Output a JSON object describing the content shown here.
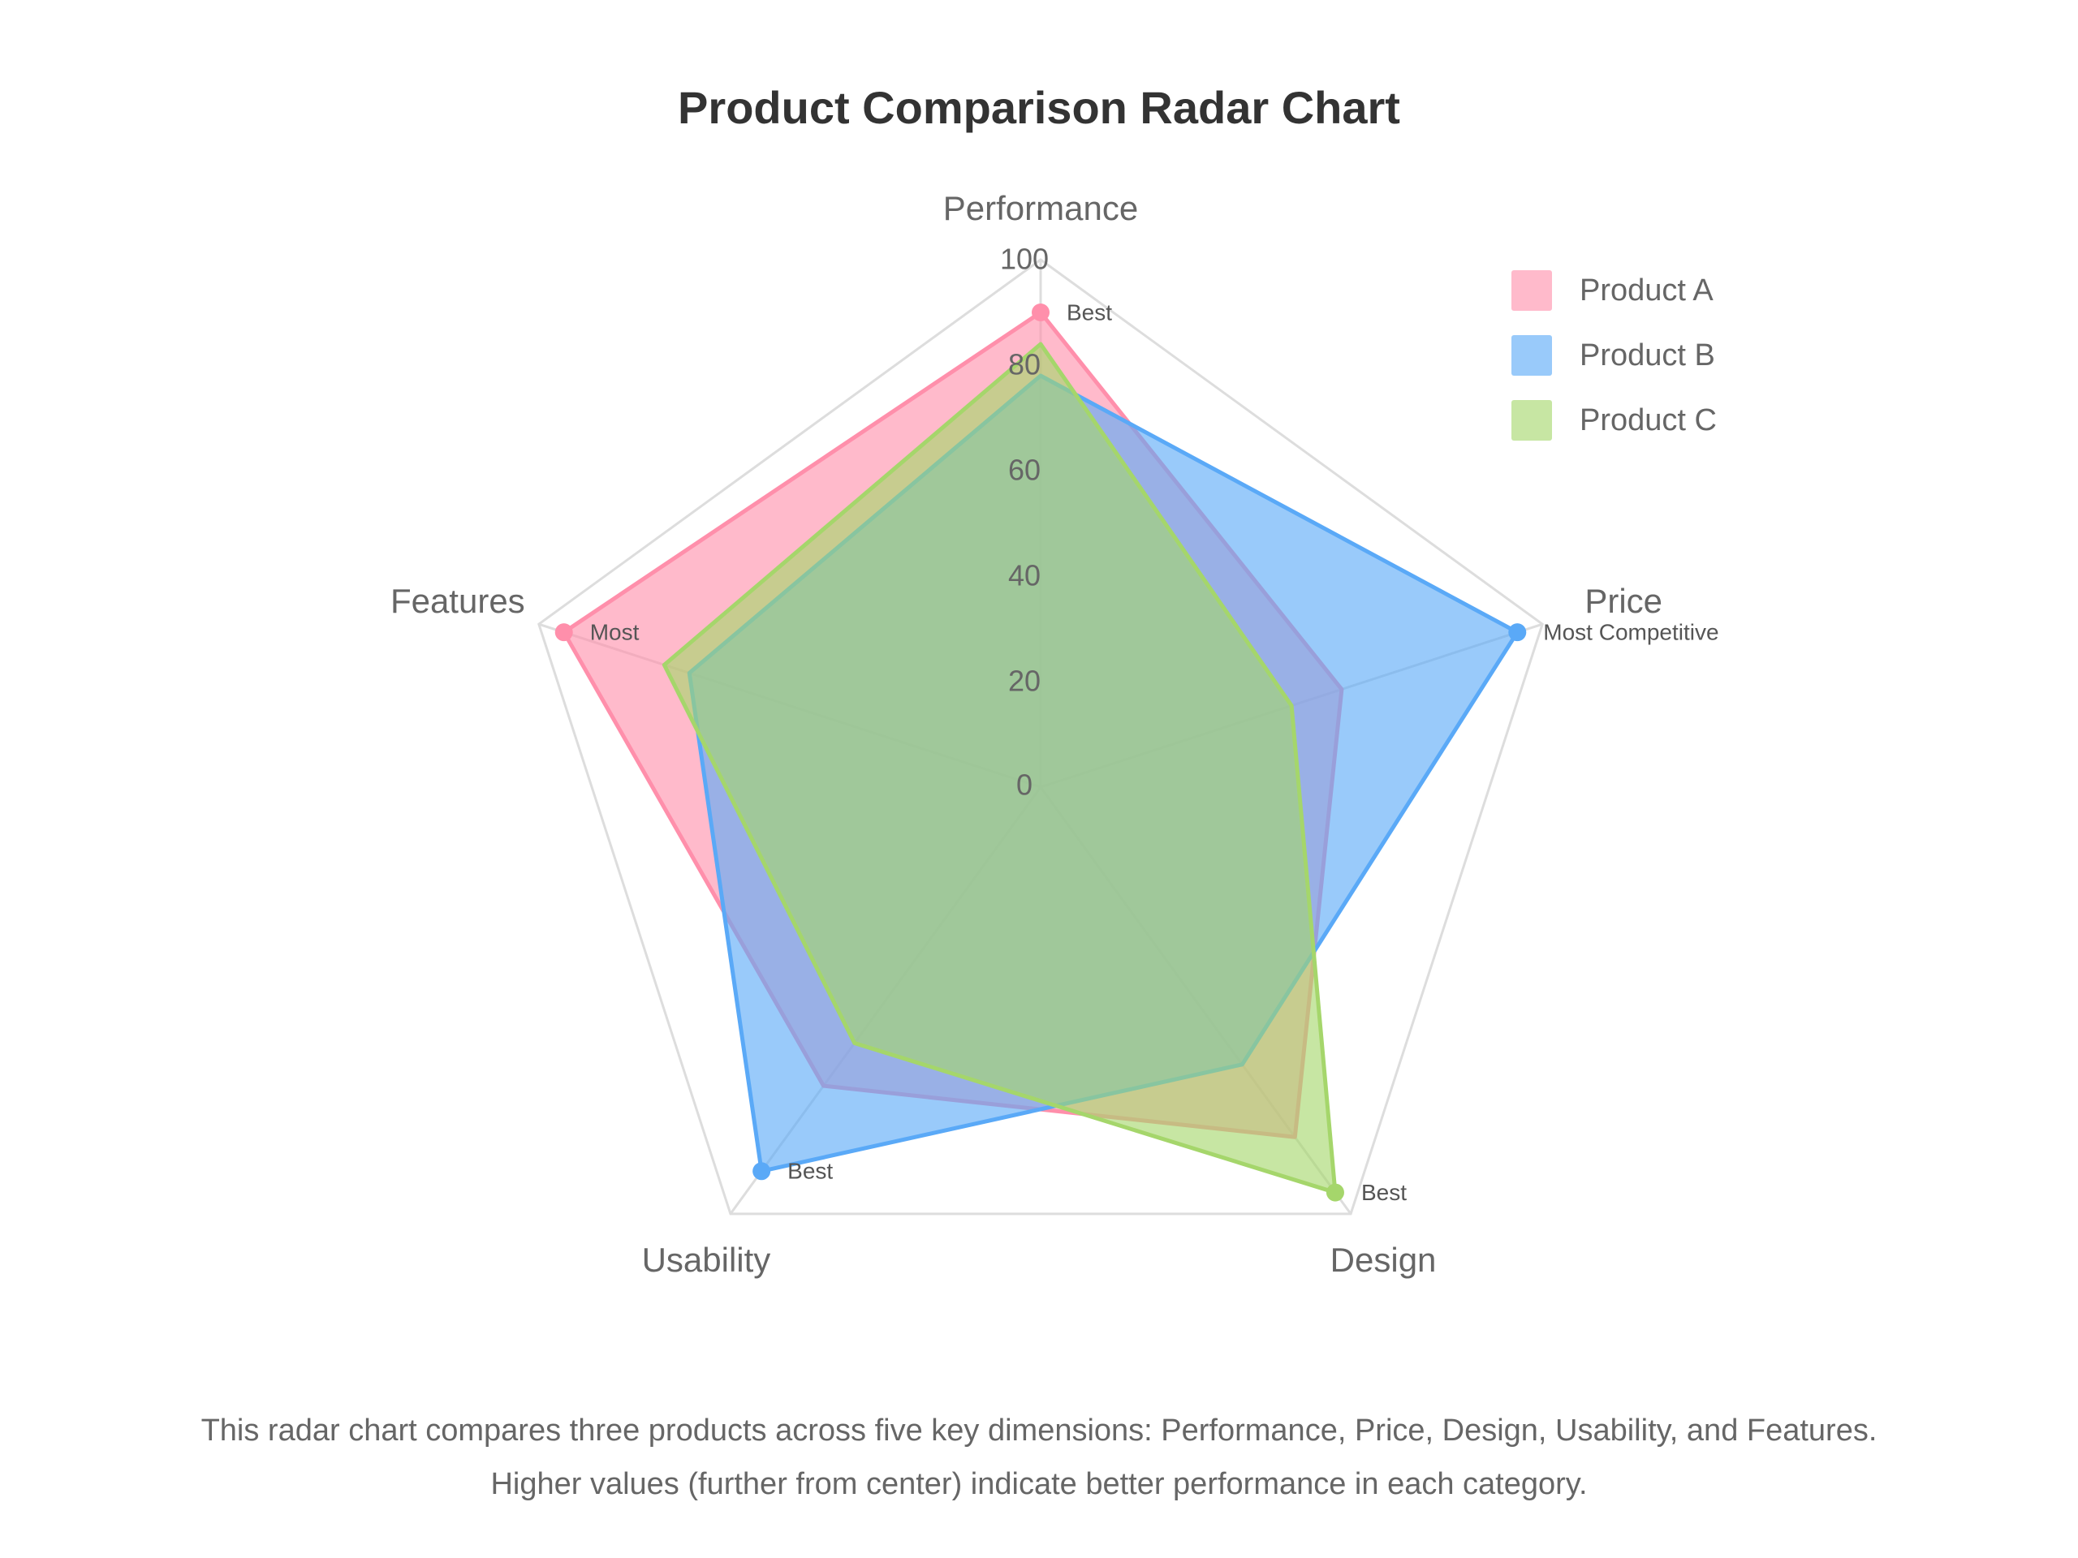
{
  "chart_data": {
    "type": "radar",
    "title": "Product Comparison Radar Chart",
    "axes": [
      "Performance",
      "Price",
      "Design",
      "Usability",
      "Features"
    ],
    "rlim": [
      0,
      100
    ],
    "ticks": [
      0,
      20,
      40,
      60,
      80,
      100
    ],
    "series": [
      {
        "name": "Product A",
        "values": [
          90,
          60,
          82,
          70,
          95
        ],
        "color": "#ff8fab",
        "point_labels": [
          "Best",
          "",
          "",
          "",
          "Most"
        ]
      },
      {
        "name": "Product B",
        "values": [
          78,
          95,
          65,
          90,
          70
        ],
        "color": "#5aa9f7",
        "point_labels": [
          "",
          "Most Competitive",
          "",
          "Best",
          ""
        ]
      },
      {
        "name": "Product C",
        "values": [
          84,
          50,
          95,
          60,
          75
        ],
        "color": "#a5d66b",
        "point_labels": [
          "",
          "",
          "Best",
          "",
          ""
        ]
      }
    ],
    "legend": "top-right"
  },
  "description": {
    "line1": "This radar chart compares three products across five key dimensions: Performance, Price, Design, Usability, and Features.",
    "line2": "Higher values (further from center) indicate better performance in each category."
  }
}
